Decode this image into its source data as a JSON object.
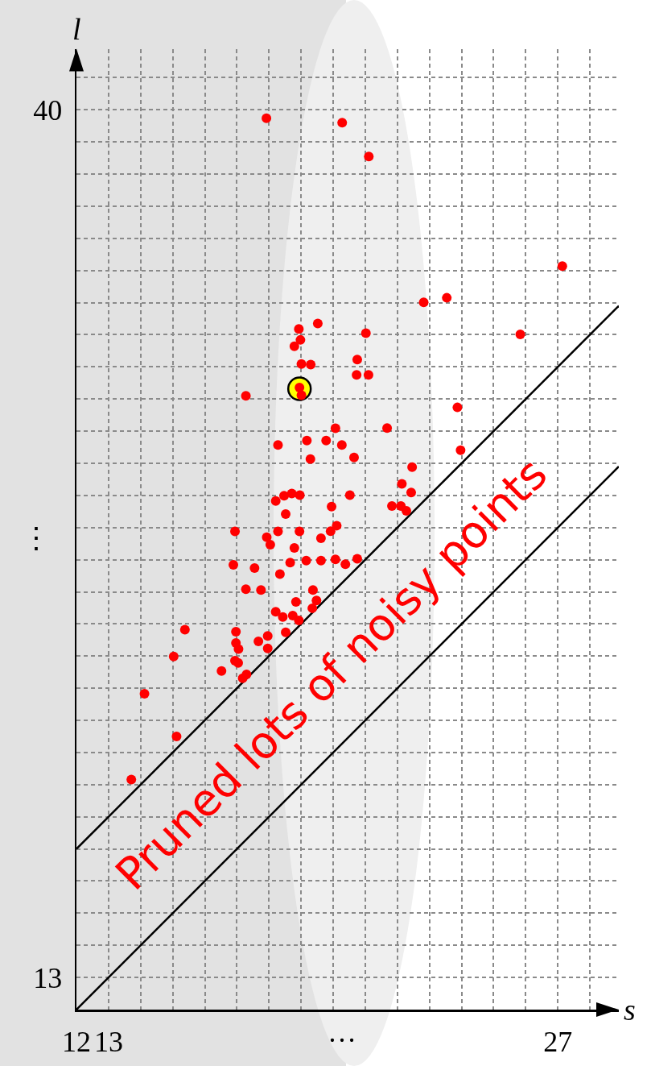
{
  "chart_data": {
    "type": "scatter",
    "xlabel": "s",
    "ylabel": "l",
    "xlim": [
      12,
      28.9
    ],
    "ylim": [
      12,
      41.9
    ],
    "xticks": [
      12,
      13,
      {
        "value": 14,
        "label": null
      },
      {
        "value": 15,
        "label": null
      },
      {
        "value": 16,
        "label": null
      },
      {
        "value": 17,
        "label": null
      },
      {
        "value": 18,
        "label": null
      },
      {
        "value": 19,
        "label": null
      },
      {
        "value": 20,
        "label": null
      },
      {
        "value": 21,
        "label": null
      },
      {
        "value": 22,
        "label": null
      },
      {
        "value": 23,
        "label": null
      },
      {
        "value": 24,
        "label": null
      },
      {
        "value": 25,
        "label": null
      },
      {
        "value": 26,
        "label": null
      },
      27,
      {
        "value": 28,
        "label": null
      }
    ],
    "yticks": [
      13,
      {
        "value": 14,
        "label": null
      },
      {
        "value": 15,
        "label": null
      },
      {
        "value": 16,
        "label": null
      },
      {
        "value": 17,
        "label": null
      },
      {
        "value": 18,
        "label": null
      },
      {
        "value": 19,
        "label": null
      },
      {
        "value": 20,
        "label": null
      },
      {
        "value": 21,
        "label": null
      },
      {
        "value": 22,
        "label": null
      },
      {
        "value": 23,
        "label": null
      },
      {
        "value": 24,
        "label": null
      },
      {
        "value": 25,
        "label": null
      },
      {
        "value": 26,
        "label": null
      },
      {
        "value": 27,
        "label": null
      },
      {
        "value": 28,
        "label": null
      },
      {
        "value": 29,
        "label": null
      },
      {
        "value": 30,
        "label": null
      },
      {
        "value": 31,
        "label": null
      },
      {
        "value": 32,
        "label": null
      },
      {
        "value": 33,
        "label": null
      },
      {
        "value": 34,
        "label": null
      },
      {
        "value": 35,
        "label": null
      },
      {
        "value": 36,
        "label": null
      },
      {
        "value": 37,
        "label": null
      },
      {
        "value": 38,
        "label": null
      },
      {
        "value": 39,
        "label": null
      },
      40,
      {
        "value": 41,
        "label": null
      }
    ],
    "grid": true,
    "legend": false,
    "bands": [
      {
        "axis": "x",
        "from": 12,
        "to": 20.4,
        "color": "#e2e2e2"
      }
    ],
    "series": [
      {
        "type": "line",
        "color": "#000000",
        "x": [
          12,
          28.9
        ],
        "values": [
          17,
          33.9
        ]
      },
      {
        "type": "line",
        "color": "#000000",
        "x": [
          12,
          28.9
        ],
        "values": [
          12,
          28.9
        ]
      },
      {
        "color": "#ffff00",
        "x": [
          18.95
        ],
        "values": [
          31.32
        ]
      },
      {
        "color": "#ff0000",
        "x": [
          17.92,
          20.28,
          21.11,
          27.14,
          22.82,
          23.54,
          19.52,
          18.93,
          18.98,
          18.79,
          21.02,
          25.83,
          19.01,
          19.3,
          20.75,
          20.73,
          21.1,
          18.95,
          19.01,
          17.28,
          23.87,
          20.07,
          21.68,
          18.28,
          19.18,
          19.78,
          20.27,
          23.97,
          19.29,
          20.65,
          22.46,
          22.14,
          22.43,
          21.83,
          22.11,
          22.28,
          18.21,
          18.47,
          18.71,
          18.96,
          20.52,
          19.95,
          18.52,
          16.94,
          18.28,
          18.95,
          17.93,
          18.04,
          18.79,
          19.62,
          19.92,
          20.11,
          16.89,
          17.55,
          18.66,
          19.16,
          19.62,
          20.07,
          20.38,
          20.75,
          18.34,
          17.28,
          17.75,
          19.37,
          19.48,
          19.35,
          18.84,
          18.21,
          18.43,
          18.74,
          18.93,
          18.52,
          16.97,
          16.97,
          17.05,
          17.67,
          17.96,
          17.96,
          16.94,
          17.04,
          16.52,
          17.3,
          17.18,
          15.38,
          15.03,
          14.12,
          15.12,
          13.71
        ],
        "values": [
          39.74,
          39.6,
          38.55,
          35.14,
          34.01,
          34.15,
          33.35,
          33.18,
          32.84,
          32.64,
          33.05,
          33.01,
          32.09,
          32.07,
          32.23,
          31.75,
          31.75,
          31.36,
          31.12,
          31.1,
          30.74,
          30.09,
          30.1,
          29.57,
          29.71,
          29.71,
          29.57,
          29.41,
          29.13,
          29.18,
          28.88,
          28.36,
          28.09,
          27.67,
          27.67,
          27.52,
          27.83,
          27.99,
          28.06,
          28.01,
          28.01,
          27.65,
          27.42,
          26.88,
          26.88,
          26.88,
          26.7,
          26.47,
          26.37,
          26.67,
          26.89,
          27.06,
          25.84,
          25.74,
          25.91,
          25.97,
          25.97,
          26.01,
          25.86,
          26.03,
          25.55,
          25.08,
          25.06,
          25.06,
          24.73,
          24.49,
          24.69,
          24.38,
          24.22,
          24.26,
          24.11,
          23.74,
          23.76,
          23.41,
          23.22,
          23.46,
          23.63,
          23.24,
          22.86,
          22.79,
          22.54,
          22.43,
          22.31,
          23.82,
          22.99,
          21.83,
          20.5,
          19.16
        ]
      }
    ],
    "annotations": [
      "Pruned lots of noisy points",
      "…",
      "⋮"
    ]
  }
}
